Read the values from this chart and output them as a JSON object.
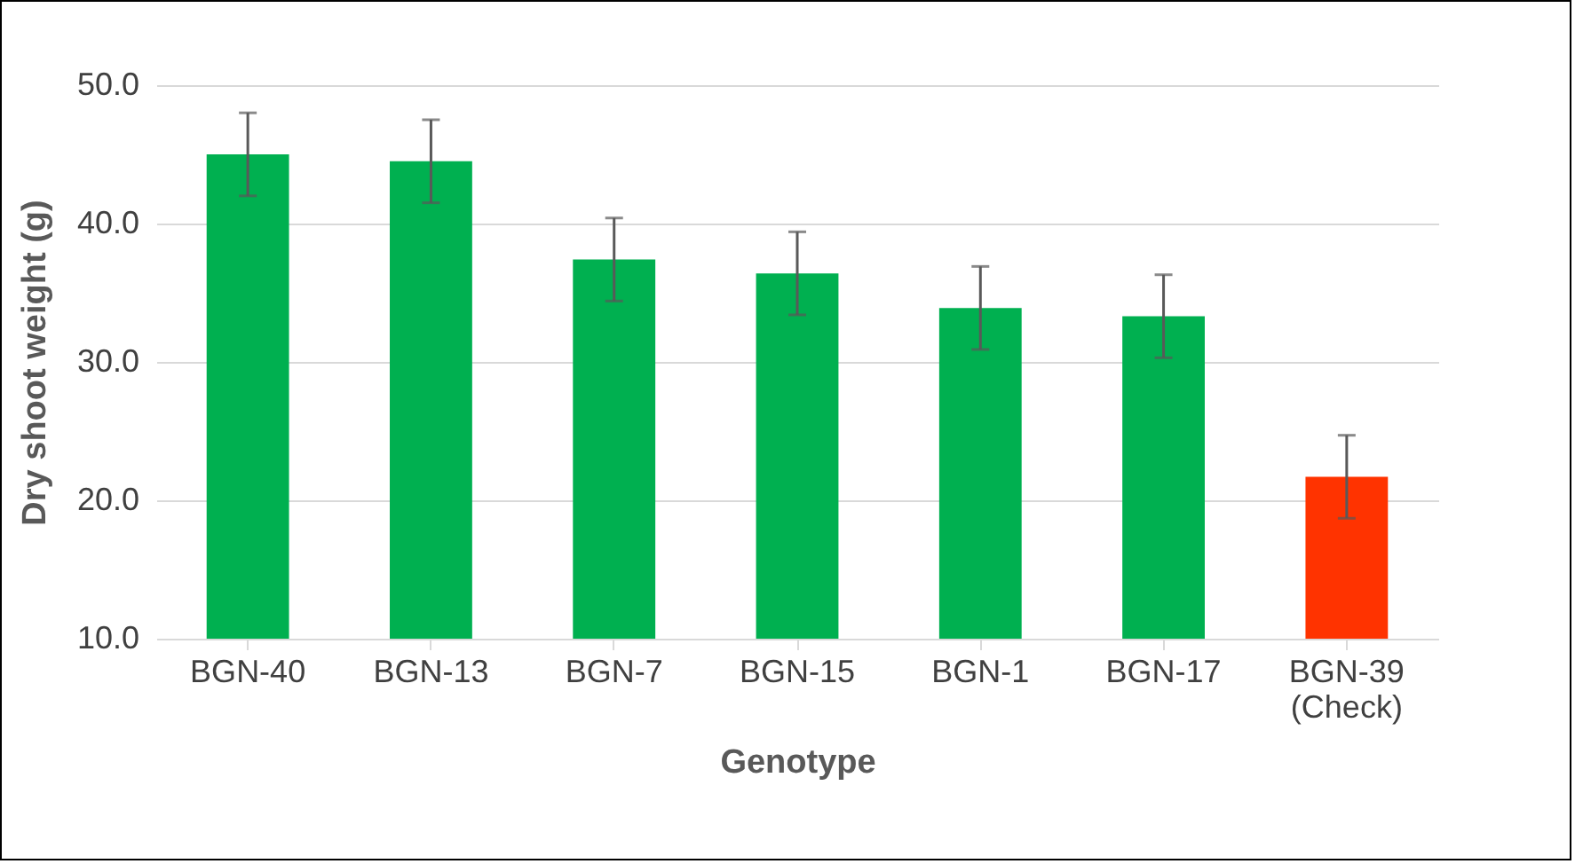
{
  "chart_data": {
    "type": "bar",
    "xlabel": "Genotype",
    "ylabel": "Dry shoot weight (g)",
    "categories": [
      "BGN-40",
      "BGN-13",
      "BGN-7",
      "BGN-15",
      "BGN-1",
      "BGN-17",
      "BGN-39 (Check)"
    ],
    "values": [
      45.0,
      44.5,
      37.4,
      36.4,
      33.9,
      33.3,
      21.7
    ],
    "colors": [
      "#00b050",
      "#00b050",
      "#00b050",
      "#00b050",
      "#00b050",
      "#00b050",
      "#ff3300"
    ],
    "errors": [
      3,
      3,
      3,
      3,
      3,
      3,
      3
    ],
    "ylim": [
      10,
      50
    ],
    "yticks": [
      {
        "value": 10,
        "label": "10.0"
      },
      {
        "value": 20,
        "label": "20.0"
      },
      {
        "value": 30,
        "label": "30.0"
      },
      {
        "value": 40,
        "label": "40.0"
      },
      {
        "value": 50,
        "label": "50.0"
      }
    ],
    "grid": "y"
  }
}
